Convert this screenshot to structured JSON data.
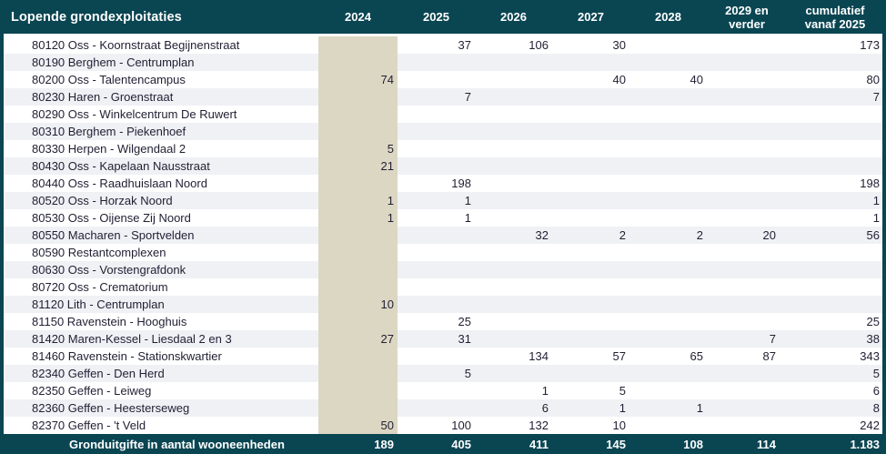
{
  "colors": {
    "header_bg": "#0a4552",
    "highlight_col_bg": "#dcd7c3",
    "stripe_bg": "#eff1f5",
    "row_bg": "#ffffff",
    "body_text": "#201f33",
    "header_text": "#ffffff"
  },
  "table": {
    "title": "Lopende grondexploitaties",
    "columns": [
      "2024",
      "2025",
      "2026",
      "2027",
      "2028",
      "2029 en verder",
      "cumulatief vanaf 2025"
    ],
    "rows": [
      {
        "label": "80120 Oss - Koornstraat Begijnenstraat",
        "values": [
          "",
          "37",
          "106",
          "30",
          "",
          "",
          "173"
        ]
      },
      {
        "label": "80190 Berghem - Centrumplan",
        "values": [
          "",
          "",
          "",
          "",
          "",
          "",
          ""
        ]
      },
      {
        "label": "80200 Oss - Talentencampus",
        "values": [
          "74",
          "",
          "",
          "40",
          "40",
          "",
          "80"
        ]
      },
      {
        "label": "80230 Haren - Groenstraat",
        "values": [
          "",
          "7",
          "",
          "",
          "",
          "",
          "7"
        ]
      },
      {
        "label": "80290 Oss - Winkelcentrum De Ruwert",
        "values": [
          "",
          "",
          "",
          "",
          "",
          "",
          ""
        ]
      },
      {
        "label": "80310 Berghem - Piekenhoef",
        "values": [
          "",
          "",
          "",
          "",
          "",
          "",
          ""
        ]
      },
      {
        "label": "80330 Herpen - Wilgendaal 2",
        "values": [
          "5",
          "",
          "",
          "",
          "",
          "",
          ""
        ]
      },
      {
        "label": "80430 Oss - Kapelaan Nausstraat",
        "values": [
          "21",
          "",
          "",
          "",
          "",
          "",
          ""
        ]
      },
      {
        "label": "80440 Oss - Raadhuislaan Noord",
        "values": [
          "",
          "198",
          "",
          "",
          "",
          "",
          "198"
        ]
      },
      {
        "label": "80520 Oss - Horzak Noord",
        "values": [
          "1",
          "1",
          "",
          "",
          "",
          "",
          "1"
        ]
      },
      {
        "label": "80530 Oss - Oijense Zij Noord",
        "values": [
          "1",
          "1",
          "",
          "",
          "",
          "",
          "1"
        ]
      },
      {
        "label": "80550 Macharen - Sportvelden",
        "values": [
          "",
          "",
          "32",
          "2",
          "2",
          "20",
          "56"
        ]
      },
      {
        "label": "80590 Restantcomplexen",
        "values": [
          "",
          "",
          "",
          "",
          "",
          "",
          ""
        ]
      },
      {
        "label": "80630 Oss - Vorstengrafdonk",
        "values": [
          "",
          "",
          "",
          "",
          "",
          "",
          ""
        ]
      },
      {
        "label": "80720 Oss - Crematorium",
        "values": [
          "",
          "",
          "",
          "",
          "",
          "",
          ""
        ]
      },
      {
        "label": "81120 Lith - Centrumplan",
        "values": [
          "10",
          "",
          "",
          "",
          "",
          "",
          ""
        ]
      },
      {
        "label": "81150 Ravenstein - Hooghuis",
        "values": [
          "",
          "25",
          "",
          "",
          "",
          "",
          "25"
        ]
      },
      {
        "label": "81420 Maren-Kessel - Liesdaal 2 en 3",
        "values": [
          "27",
          "31",
          "",
          "",
          "",
          "7",
          "38"
        ]
      },
      {
        "label": "81460 Ravenstein - Stationskwartier",
        "values": [
          "",
          "",
          "134",
          "57",
          "65",
          "87",
          "343"
        ]
      },
      {
        "label": "82340 Geffen - Den Herd",
        "values": [
          "",
          "5",
          "",
          "",
          "",
          "",
          "5"
        ]
      },
      {
        "label": "82350 Geffen - Leiweg",
        "values": [
          "",
          "",
          "1",
          "5",
          "",
          "",
          "6"
        ]
      },
      {
        "label": "82360 Geffen - Heesterseweg",
        "values": [
          "",
          "",
          "6",
          "1",
          "1",
          "",
          "8"
        ]
      },
      {
        "label": "82370 Geffen - 't Veld",
        "values": [
          "50",
          "100",
          "132",
          "10",
          "",
          "",
          "242"
        ]
      }
    ],
    "footer": {
      "label": "Gronduitgifte in aantal wooneenheden",
      "values": [
        "189",
        "405",
        "411",
        "145",
        "108",
        "114",
        "1.183"
      ]
    }
  }
}
